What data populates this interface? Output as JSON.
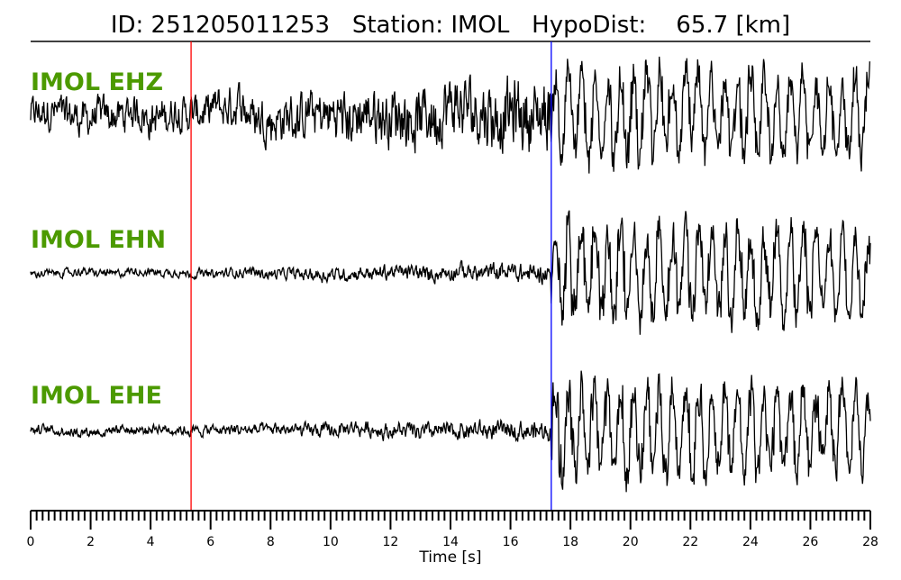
{
  "chart_data": {
    "type": "line",
    "title": "ID: 251205011253   Station: IMOL   HypoDist:    65.7 [km]",
    "xlabel": "Time [s]",
    "ylabel": "",
    "xlim": [
      0,
      28
    ],
    "xticks": [
      0,
      2,
      4,
      6,
      8,
      10,
      12,
      14,
      16,
      18,
      20,
      22,
      24,
      26,
      28
    ],
    "minor_tick_step": 0.2,
    "grid": false,
    "traces": [
      {
        "name": "IMOL EHZ",
        "pre_p_noise": 0.35,
        "p_coda": 0.75,
        "s_coda": 1.0
      },
      {
        "name": "IMOL EHN",
        "pre_p_noise": 0.08,
        "p_coda": 0.2,
        "s_coda": 1.0
      },
      {
        "name": "IMOL EHE",
        "pre_p_noise": 0.1,
        "p_coda": 0.2,
        "s_coda": 1.0
      }
    ],
    "picks": [
      {
        "phase": "P",
        "time": 5.35,
        "color": "#ff0000"
      },
      {
        "phase": "S",
        "time": 17.36,
        "color": "#0000ff"
      }
    ],
    "label_color": "#4c9a00",
    "trace_color": "#000000"
  }
}
